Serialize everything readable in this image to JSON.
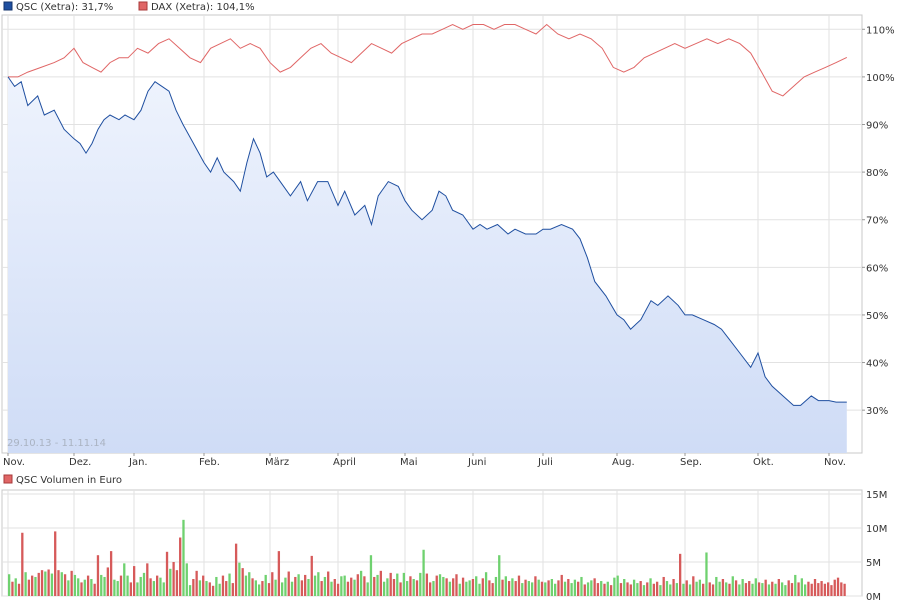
{
  "chart_data": [
    {
      "type": "line",
      "legend": [
        {
          "label": "QSC (Xetra): 31,7%",
          "color": "#1f4fa0"
        },
        {
          "label": "DAX (Xetra): 104,1%",
          "color": "#e06666"
        }
      ],
      "range_label": "29.10.13 - 11.11.14",
      "x_tick_labels": [
        "Nov.",
        "Dez.",
        "Jan.",
        "Feb.",
        "März",
        "April",
        "Mai",
        "Juni",
        "Juli",
        "Aug.",
        "Sep.",
        "Okt.",
        "Nov."
      ],
      "y_tick_labels": [
        "30%",
        "40%",
        "50%",
        "60%",
        "70%",
        "80%",
        "90%",
        "100%",
        "110%"
      ],
      "y_ticks": [
        30,
        40,
        50,
        60,
        70,
        80,
        90,
        100,
        110
      ],
      "ylim": [
        21,
        113
      ],
      "x_months": [
        0,
        1,
        2,
        3,
        4,
        5,
        6,
        7,
        8,
        9,
        10,
        11,
        12
      ],
      "grid": true,
      "area_fill_series": "QSC (Xetra)",
      "series": [
        {
          "name": "QSC (Xetra)",
          "color": "#1f4fa0",
          "x": [
            0,
            0.1,
            0.2,
            0.3,
            0.45,
            0.55,
            0.7,
            0.85,
            1.0,
            1.1,
            1.2,
            1.3,
            1.4,
            1.5,
            1.6,
            1.75,
            1.85,
            2.0,
            2.1,
            2.2,
            2.3,
            2.4,
            2.5,
            2.6,
            2.7,
            2.85,
            3.0,
            3.1,
            3.2,
            3.3,
            3.45,
            3.55,
            3.65,
            3.75,
            3.85,
            3.95,
            4.05,
            4.15,
            4.3,
            4.45,
            4.55,
            4.7,
            4.85,
            5.0,
            5.1,
            5.25,
            5.4,
            5.5,
            5.6,
            5.75,
            5.9,
            6.0,
            6.1,
            6.25,
            6.4,
            6.5,
            6.6,
            6.7,
            6.85,
            7.0,
            7.1,
            7.2,
            7.35,
            7.5,
            7.6,
            7.75,
            7.9,
            8.0,
            8.1,
            8.25,
            8.4,
            8.5,
            8.6,
            8.7,
            8.85,
            9.0,
            9.1,
            9.2,
            9.35,
            9.5,
            9.6,
            9.75,
            9.9,
            10.0,
            10.1,
            10.25,
            10.4,
            10.5,
            10.6,
            10.75,
            10.9,
            11.0,
            11.1,
            11.2,
            11.35,
            11.5,
            11.6,
            11.75,
            11.85,
            12.0,
            12.1,
            12.25
          ],
          "values": [
            100,
            98,
            99,
            94,
            96,
            92,
            93,
            89,
            87,
            86,
            84,
            86,
            89,
            91,
            92,
            91,
            92,
            91,
            93,
            97,
            99,
            98,
            97,
            93,
            90,
            86,
            82,
            80,
            83,
            80,
            78,
            76,
            82,
            87,
            84,
            79,
            80,
            78,
            75,
            78,
            74,
            78,
            78,
            73,
            76,
            71,
            73,
            69,
            75,
            78,
            77,
            74,
            72,
            70,
            72,
            76,
            75,
            72,
            71,
            68,
            69,
            68,
            69,
            67,
            68,
            67,
            67,
            68,
            68,
            69,
            68,
            66,
            62,
            57,
            54,
            50,
            49,
            47,
            49,
            53,
            52,
            54,
            52,
            50,
            50,
            49,
            48,
            47,
            45,
            42,
            39,
            42,
            37,
            35,
            33,
            31,
            31,
            33,
            32,
            32,
            31.7,
            31.7
          ]
        },
        {
          "name": "DAX (Xetra)",
          "color": "#e06666",
          "x": [
            0,
            0.15,
            0.3,
            0.5,
            0.7,
            0.85,
            1.0,
            1.15,
            1.3,
            1.45,
            1.6,
            1.75,
            1.9,
            2.05,
            2.2,
            2.35,
            2.5,
            2.65,
            2.8,
            2.95,
            3.1,
            3.25,
            3.4,
            3.55,
            3.7,
            3.85,
            4.0,
            4.15,
            4.3,
            4.45,
            4.6,
            4.75,
            4.9,
            5.05,
            5.2,
            5.35,
            5.5,
            5.65,
            5.8,
            5.95,
            6.1,
            6.25,
            6.4,
            6.55,
            6.7,
            6.85,
            7.0,
            7.15,
            7.3,
            7.45,
            7.6,
            7.75,
            7.9,
            8.05,
            8.2,
            8.35,
            8.5,
            8.65,
            8.8,
            8.95,
            9.1,
            9.25,
            9.4,
            9.55,
            9.7,
            9.85,
            10.0,
            10.15,
            10.3,
            10.45,
            10.6,
            10.75,
            10.9,
            11.05,
            11.2,
            11.35,
            11.5,
            11.65,
            11.8,
            11.95,
            12.1,
            12.25
          ],
          "values": [
            100,
            100,
            101,
            102,
            103,
            104,
            106,
            103,
            102,
            101,
            103,
            104,
            104,
            106,
            105,
            107,
            108,
            106,
            104,
            103,
            106,
            107,
            108,
            106,
            107,
            106,
            103,
            101,
            102,
            104,
            106,
            107,
            105,
            104,
            103,
            105,
            107,
            106,
            105,
            107,
            108,
            109,
            109,
            110,
            111,
            110,
            111,
            111,
            110,
            111,
            111,
            110,
            109,
            111,
            109,
            108,
            109,
            108,
            106,
            102,
            101,
            102,
            104,
            105,
            106,
            107,
            106,
            107,
            108,
            107,
            108,
            107,
            105,
            101,
            97,
            96,
            98,
            100,
            101,
            102,
            103,
            104.1
          ]
        }
      ]
    },
    {
      "type": "bar",
      "legend": [
        {
          "label": "QSC Volumen in Euro",
          "color": "#e06666"
        }
      ],
      "y_tick_labels": [
        "0M",
        "5M",
        "10M",
        "15M"
      ],
      "y_ticks": [
        0,
        5,
        10,
        15
      ],
      "ylim": [
        0,
        15
      ],
      "grid": true,
      "up_color": "#6fd16f",
      "down_color": "#d65a5a",
      "series": [
        {
          "name": "QSC Volumen in Euro",
          "x_start_month": 0,
          "x_end_month": 12.25,
          "values": [
            3.2,
            2.1,
            2.6,
            1.8,
            9.3,
            3.5,
            2.4,
            3.0,
            2.8,
            3.4,
            3.8,
            3.6,
            3.9,
            3.3,
            9.5,
            3.8,
            3.5,
            3.2,
            2.3,
            3.7,
            3.1,
            2.6,
            2.0,
            2.4,
            3.0,
            2.5,
            1.8,
            6.0,
            3.1,
            2.8,
            4.2,
            6.6,
            2.4,
            2.2,
            3.0,
            4.8,
            3.0,
            2.0,
            4.4,
            2.0,
            2.8,
            3.4,
            4.8,
            2.6,
            2.2,
            3.0,
            2.7,
            2.0,
            6.5,
            4.0,
            5.0,
            3.8,
            8.6,
            11.2,
            4.8,
            1.6,
            2.5,
            3.7,
            2.3,
            3.0,
            2.2,
            2.0,
            1.5,
            2.8,
            1.8,
            3.0,
            2.2,
            3.3,
            1.9,
            7.7,
            4.9,
            4.1,
            3.0,
            3.5,
            2.6,
            2.3,
            1.7,
            2.2,
            3.1,
            1.9,
            3.5,
            2.4,
            6.6,
            2.0,
            2.7,
            3.6,
            2.1,
            2.8,
            3.2,
            2.3,
            3.1,
            2.5,
            5.9,
            3.0,
            3.5,
            2.2,
            2.8,
            3.6,
            2.1,
            2.5,
            1.8,
            2.9,
            3.0,
            2.1,
            2.7,
            2.4,
            3.2,
            3.7,
            2.9,
            2.0,
            6.0,
            2.8,
            3.1,
            3.7,
            2.1,
            2.6,
            3.4,
            2.5,
            3.3,
            2.0,
            3.4,
            2.2,
            2.9,
            2.5,
            2.3,
            3.4,
            6.8,
            3.3,
            2.0,
            2.2,
            3.0,
            3.2,
            2.8,
            2.6,
            2.1,
            2.6,
            3.2,
            1.8,
            2.7,
            2.1,
            2.3,
            2.5,
            2.9,
            1.8,
            2.6,
            3.5,
            2.3,
            1.9,
            2.8,
            6.0,
            2.4,
            2.9,
            2.2,
            2.6,
            2.2,
            3.0,
            1.9,
            2.4,
            2.2,
            2.0,
            2.9,
            2.4,
            2.1,
            2.0,
            2.3,
            2.5,
            1.8,
            2.3,
            3.1,
            2.1,
            2.5,
            1.9,
            2.4,
            2.1,
            2.8,
            1.7,
            2.0,
            2.3,
            2.6,
            1.9,
            2.2,
            1.8,
            2.1,
            1.6,
            2.7,
            3.0,
            1.9,
            2.5,
            2.0,
            1.7,
            2.4,
            1.9,
            2.2,
            1.6,
            2.0,
            2.6,
            1.8,
            2.1,
            1.6,
            2.8,
            2.2,
            1.7,
            2.5,
            1.9,
            6.2,
            1.8,
            2.3,
            1.7,
            2.9,
            2.1,
            2.4,
            1.8,
            6.4,
            2.0,
            1.7,
            2.8,
            2.1,
            2.5,
            2.0,
            1.8,
            2.9,
            2.3,
            1.7,
            2.5,
            1.9,
            2.2,
            1.8,
            2.6,
            2.0,
            1.9,
            2.4,
            1.7,
            2.1,
            1.8,
            2.5,
            2.0,
            1.6,
            2.3,
            1.9,
            3.1,
            2.0,
            2.6,
            1.7,
            2.1,
            1.8,
            2.5,
            1.9,
            2.2,
            1.8,
            2.0,
            1.6,
            2.4,
            2.7,
            2.0,
            1.8
          ],
          "directions": [
            1,
            -1,
            1,
            -1,
            -1,
            1,
            -1,
            -1,
            1,
            -1,
            -1,
            1,
            -1,
            1,
            -1,
            -1,
            1,
            -1,
            1,
            -1,
            1,
            1,
            -1,
            1,
            -1,
            1,
            -1,
            -1,
            1,
            1,
            -1,
            -1,
            1,
            1,
            -1,
            1,
            1,
            -1,
            -1,
            1,
            1,
            1,
            -1,
            -1,
            1,
            -1,
            1,
            1,
            -1,
            1,
            -1,
            -1,
            -1,
            1,
            1,
            1,
            -1,
            -1,
            1,
            -1,
            1,
            -1,
            -1,
            1,
            1,
            -1,
            -1,
            1,
            -1,
            -1,
            1,
            -1,
            1,
            1,
            -1,
            1,
            1,
            -1,
            1,
            -1,
            -1,
            1,
            -1,
            1,
            1,
            -1,
            1,
            -1,
            1,
            -1,
            -1,
            1,
            -1,
            1,
            1,
            -1,
            1,
            -1,
            1,
            -1,
            -1,
            1,
            1,
            -1,
            -1,
            1,
            -1,
            1,
            -1,
            1,
            1,
            -1,
            1,
            -1,
            1,
            1,
            -1,
            -1,
            1,
            -1,
            1,
            1,
            -1,
            1,
            -1,
            1,
            1,
            -1,
            -1,
            1,
            -1,
            1,
            1,
            -1,
            1,
            -1,
            -1,
            1,
            -1,
            1,
            1,
            -1,
            1,
            1,
            -1,
            1,
            -1,
            -1,
            1,
            1,
            -1,
            1,
            -1,
            1,
            -1,
            -1,
            1,
            -1,
            1,
            1,
            -1,
            1,
            -1,
            1,
            -1,
            1,
            1,
            -1,
            -1,
            1,
            -1,
            1,
            1,
            -1,
            1,
            -1,
            1,
            1,
            -1,
            -1,
            1,
            -1,
            1,
            -1,
            1,
            1,
            -1,
            1,
            -1,
            -1,
            1,
            1,
            -1,
            1,
            -1,
            1,
            -1,
            -1,
            1,
            -1,
            1,
            1,
            -1,
            1,
            -1,
            1,
            -1,
            1,
            -1,
            1,
            1,
            -1,
            1,
            -1,
            -1,
            1,
            1,
            -1,
            1,
            -1,
            1,
            -1,
            1,
            1,
            -1,
            -1,
            1,
            1,
            -1,
            1,
            -1,
            1,
            -1,
            1,
            -1,
            1,
            1,
            -1,
            -1,
            1,
            -1,
            1,
            1,
            -1,
            -1,
            -1
          ]
        }
      ]
    }
  ]
}
